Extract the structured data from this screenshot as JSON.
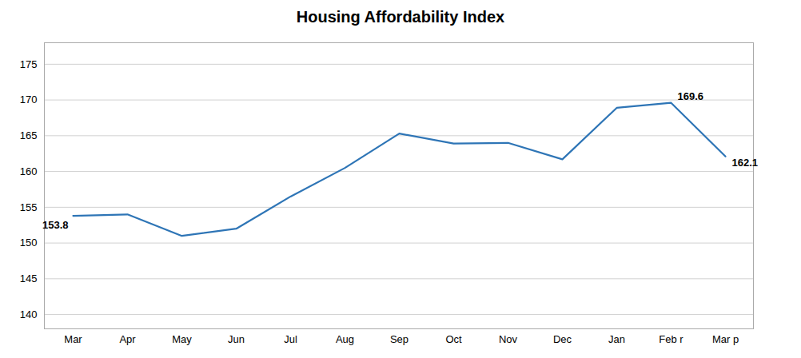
{
  "chart_data": {
    "type": "line",
    "title": "Housing Affordability Index",
    "categories": [
      "Mar",
      "Apr",
      "May",
      "Jun",
      "Jul",
      "Aug",
      "Sep",
      "Oct",
      "Nov",
      "Dec",
      "Jan",
      "Feb r",
      "Mar p"
    ],
    "values": [
      153.8,
      154.0,
      151.0,
      152.0,
      156.5,
      160.5,
      165.3,
      163.9,
      164.0,
      161.7,
      168.9,
      169.6,
      162.1
    ],
    "color": "#2E75B6",
    "ylim": [
      138,
      178
    ],
    "yticks": [
      140,
      145,
      150,
      155,
      160,
      165,
      170,
      175
    ],
    "grid": true,
    "annotations": [
      {
        "x": "Mar",
        "y": 153.8,
        "text": "153.8"
      },
      {
        "x": "Feb r",
        "y": 169.6,
        "text": "169.6"
      },
      {
        "x": "Mar p",
        "y": 162.1,
        "text": "162.1"
      }
    ]
  }
}
